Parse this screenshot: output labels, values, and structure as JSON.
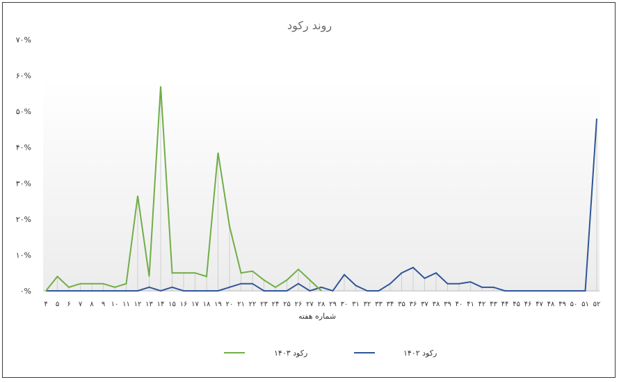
{
  "chart_data": {
    "type": "line",
    "title": "روند رکود",
    "xlabel": "شماره هفته",
    "ylabel": "",
    "ylim": [
      0,
      70
    ],
    "y_ticks": [
      "۰%",
      "۱۰%",
      "۲۰%",
      "۳۰%",
      "۴۰%",
      "۵۰%",
      "۶۰%",
      "۷۰%"
    ],
    "categories": [
      "۴",
      "۵",
      "۶",
      "۷",
      "۸",
      "۹",
      "۱۰",
      "۱۱",
      "۱۲",
      "۱۳",
      "۱۴",
      "۱۵",
      "۱۶",
      "۱۷",
      "۱۸",
      "۱۹",
      "۲۰",
      "۲۱",
      "۲۲",
      "۲۳",
      "۲۴",
      "۲۵",
      "۲۶",
      "۲۷",
      "۲۸",
      "۲۹",
      "۳۰",
      "۳۱",
      "۳۲",
      "۳۳",
      "۳۴",
      "۳۵",
      "۳۶",
      "۳۷",
      "۳۸",
      "۳۹",
      "۴۰",
      "۴۱",
      "۴۲",
      "۴۳",
      "۴۴",
      "۴۵",
      "۴۶",
      "۴۷",
      "۴۸",
      "۴۹",
      "۵۰",
      "۵۱",
      "۵۲"
    ],
    "series": [
      {
        "name": "رکود ۱۴۰۳",
        "color": "#70AD47",
        "values": [
          0,
          4,
          1,
          2,
          2,
          2,
          1,
          2,
          26.5,
          4,
          57,
          5,
          5,
          5,
          4,
          38.5,
          18,
          5,
          5.5,
          3,
          1,
          3,
          6,
          3,
          0,
          null,
          null,
          null,
          null,
          null,
          null,
          null,
          null,
          null,
          null,
          null,
          null,
          null,
          null,
          null,
          null,
          null,
          null,
          null,
          null,
          null,
          null,
          null,
          null
        ]
      },
      {
        "name": "رکود ۱۴۰۲",
        "color": "#2F5597",
        "values": [
          0,
          0,
          0,
          0,
          0,
          0,
          0,
          0,
          0,
          1,
          0,
          1,
          0,
          0,
          0,
          0,
          1,
          2,
          2,
          0,
          0,
          0,
          2,
          0,
          1,
          0,
          4.5,
          1.5,
          0,
          0,
          2,
          5,
          6.5,
          3.5,
          5,
          2,
          2,
          2.5,
          1,
          1,
          0,
          0,
          0,
          0,
          0,
          0,
          0,
          0,
          48
        ]
      }
    ],
    "grid": false,
    "legend_position": "bottom"
  }
}
